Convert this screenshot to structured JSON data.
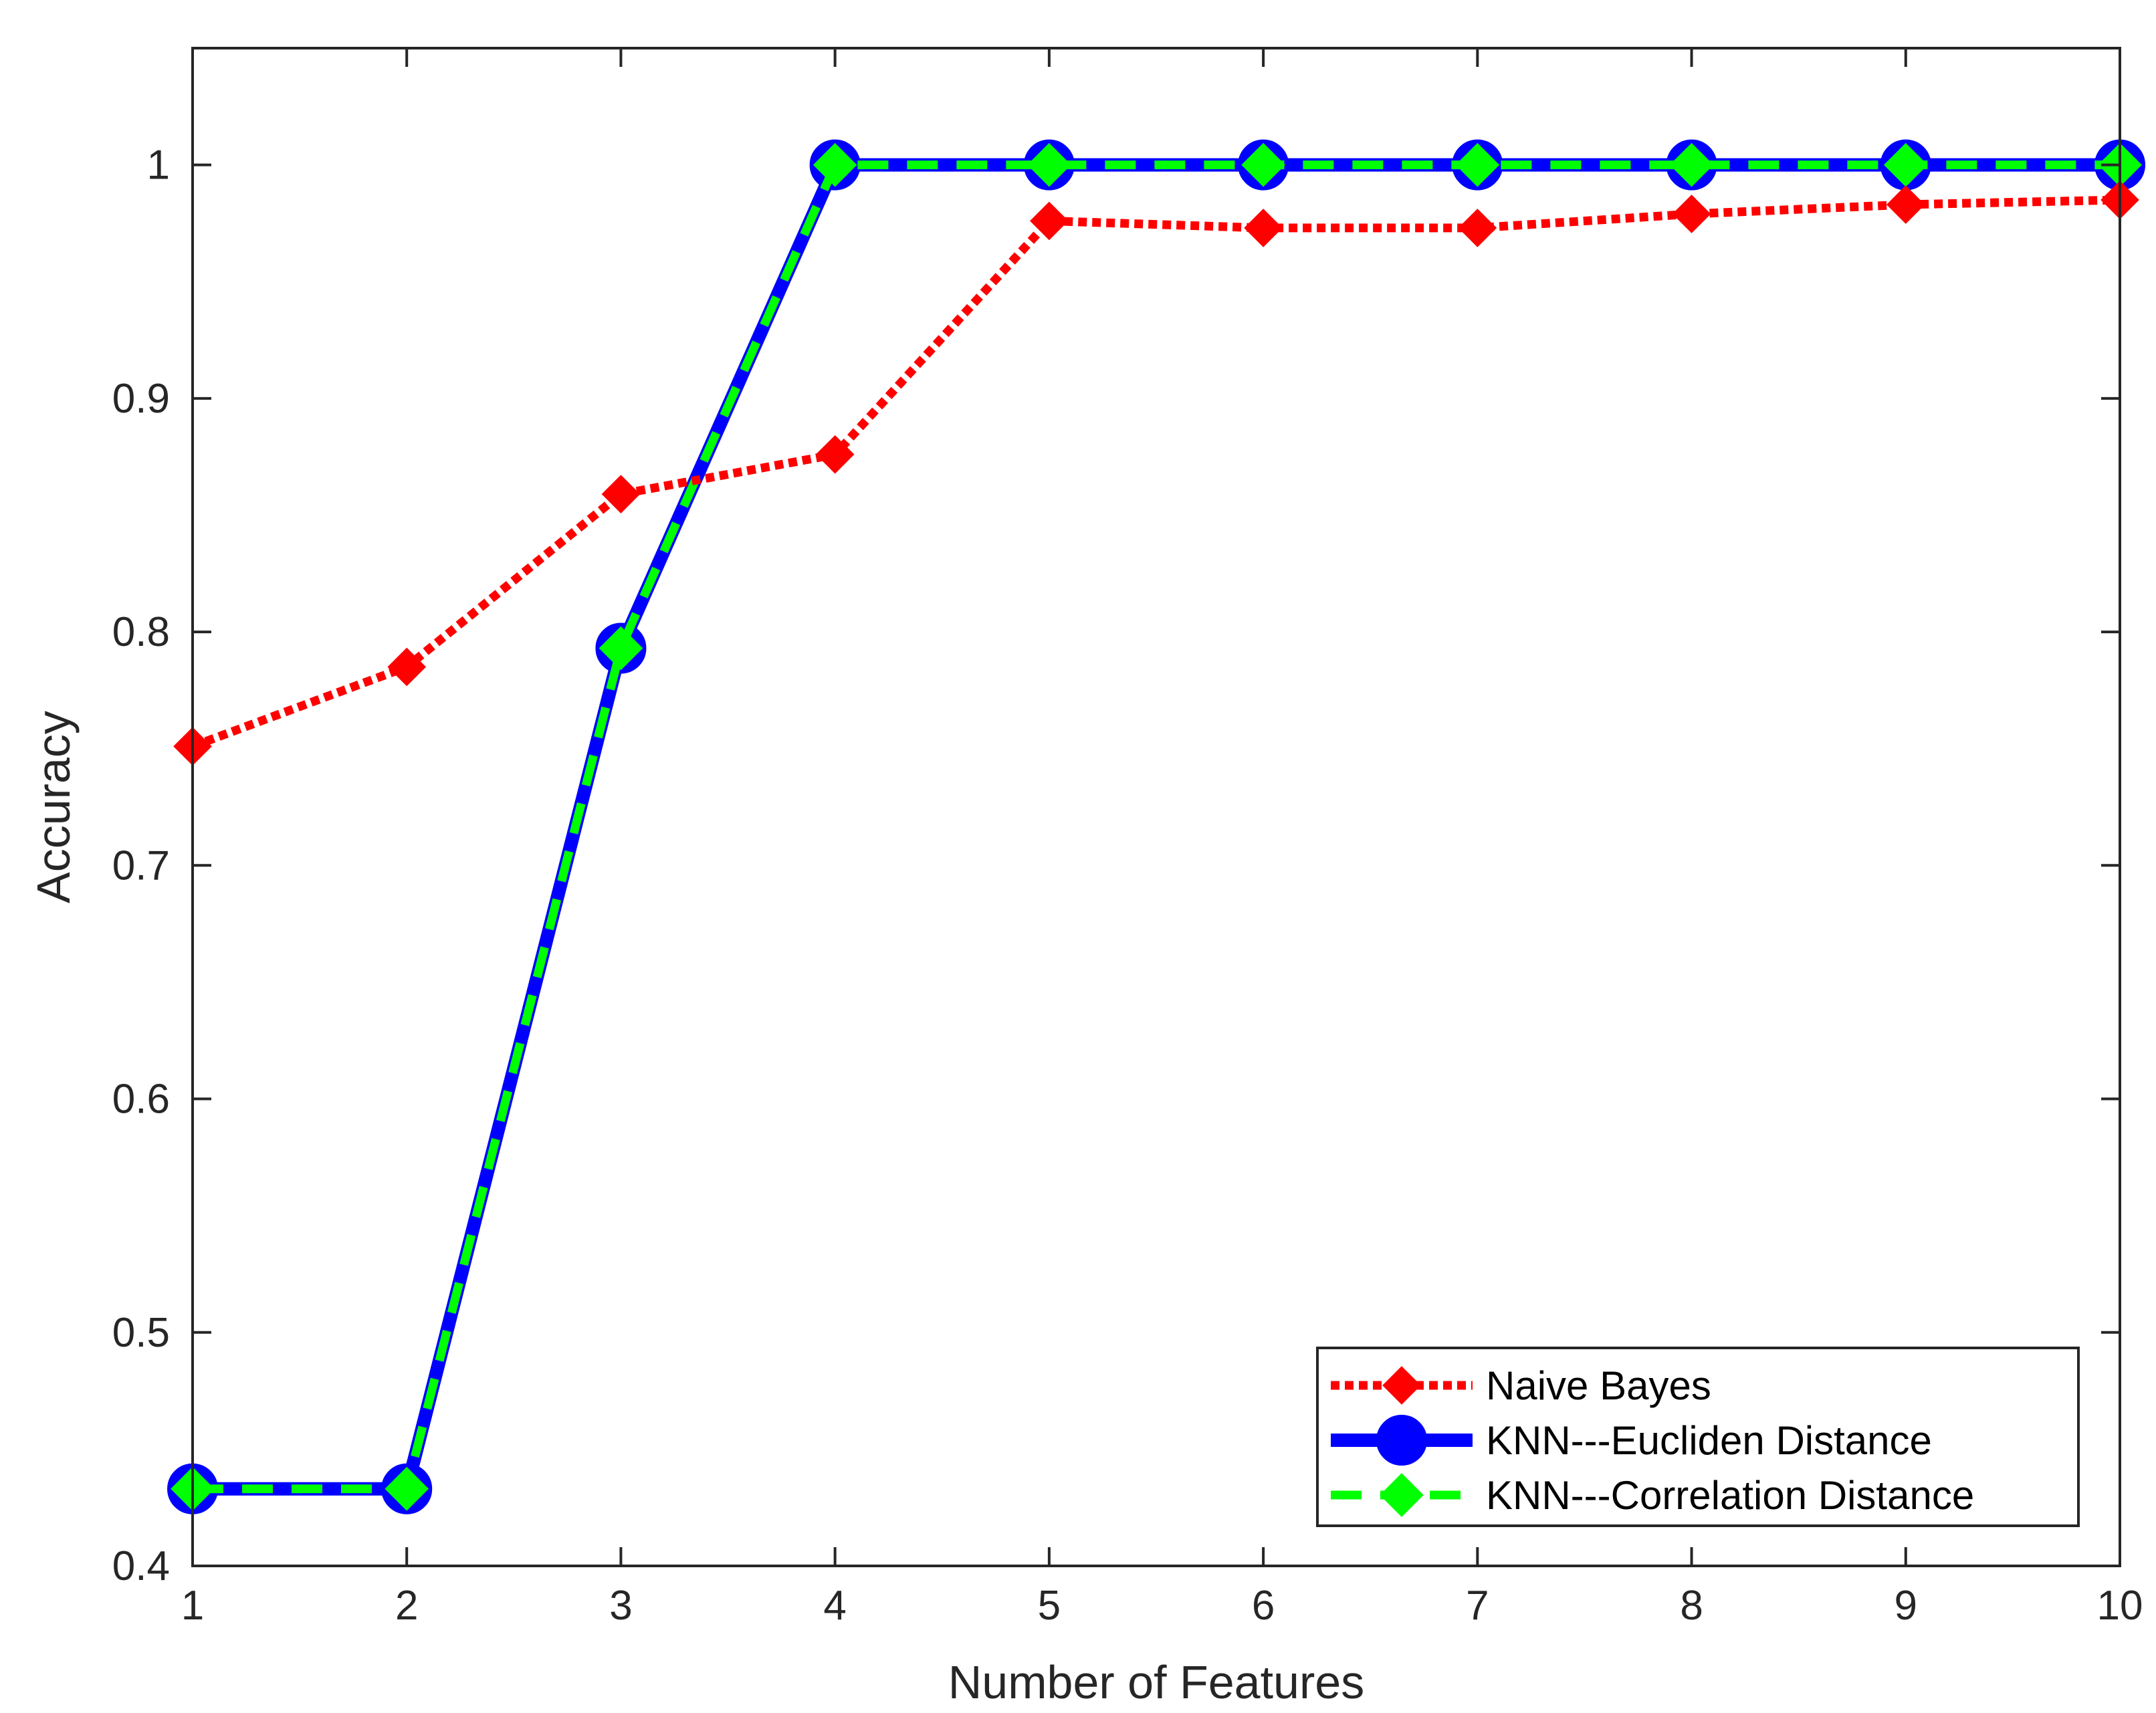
{
  "chart_data": {
    "type": "line",
    "xlabel": "Number of Features",
    "ylabel": "Accuracy",
    "xlim": [
      1,
      10
    ],
    "ylim": [
      0.4,
      1.05
    ],
    "xticks": [
      1,
      2,
      3,
      4,
      5,
      6,
      7,
      8,
      9,
      10
    ],
    "yticks": [
      0.4,
      0.5,
      0.6,
      0.7,
      0.8,
      0.9,
      1
    ],
    "xtick_labels": [
      "1",
      "2",
      "3",
      "4",
      "5",
      "6",
      "7",
      "8",
      "9",
      "10"
    ],
    "ytick_labels": [
      "0.4",
      "0.5",
      "0.6",
      "0.7",
      "0.8",
      "0.9",
      "1"
    ],
    "grid": false,
    "legend_position": "bottom-right",
    "x": [
      1,
      2,
      3,
      4,
      5,
      6,
      7,
      8,
      9,
      10
    ],
    "series": [
      {
        "name": "Naive Bayes",
        "values": [
          0.751,
          0.785,
          0.859,
          0.876,
          0.976,
          0.973,
          0.973,
          0.979,
          0.983,
          0.985
        ],
        "color": "#ff0000",
        "line_style": "dotted",
        "marker": "diamond"
      },
      {
        "name": "KNN---Eucliden Distance",
        "values": [
          0.433,
          0.433,
          0.793,
          1.0,
          1.0,
          1.0,
          1.0,
          1.0,
          1.0,
          1.0
        ],
        "color": "#0000ff",
        "line_style": "solid",
        "marker": "circle"
      },
      {
        "name": "KNN---Correlation Distance",
        "values": [
          0.433,
          0.433,
          0.793,
          1.0,
          1.0,
          1.0,
          1.0,
          1.0,
          1.0,
          1.0
        ],
        "color": "#00ff00",
        "line_style": "dashed",
        "marker": "diamond"
      }
    ]
  }
}
